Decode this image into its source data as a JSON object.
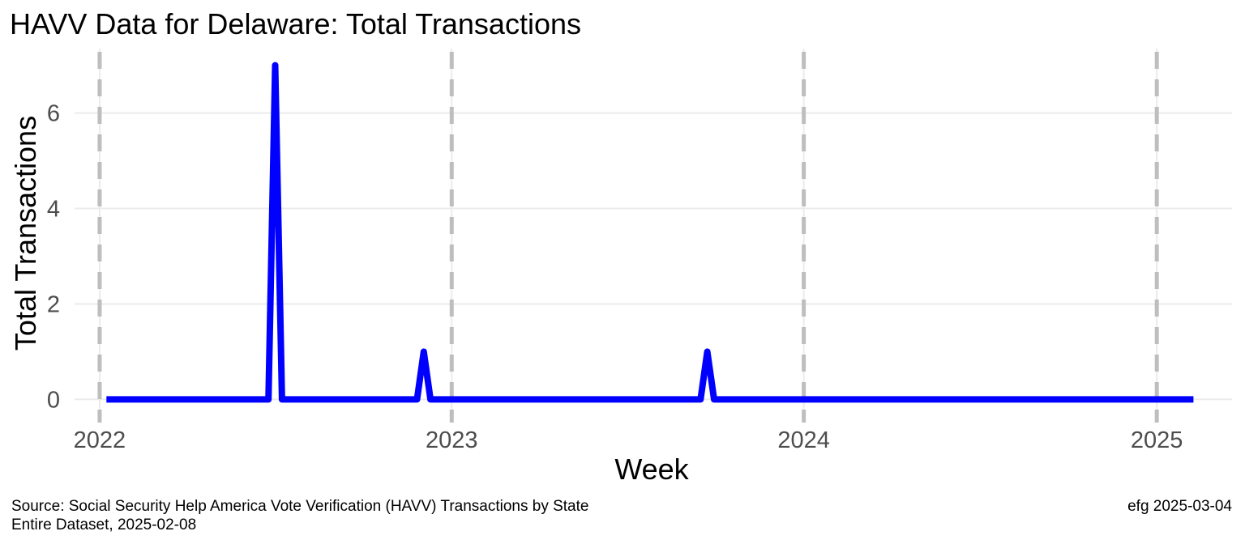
{
  "chart_data": {
    "type": "line",
    "title": "HAVV Data for Delaware:  Total Transactions",
    "xlabel": "Week",
    "ylabel": "Total Transactions",
    "x_axis_type": "date",
    "xlim": [
      "2021-12-06",
      "2025-03-20"
    ],
    "ylim": [
      -0.35,
      7.35
    ],
    "x_ticks": [
      "2022",
      "2023",
      "2024",
      "2025"
    ],
    "x_tick_dates": [
      "2022-01-01",
      "2023-01-01",
      "2024-01-01",
      "2025-01-01"
    ],
    "y_ticks": [
      0,
      2,
      4,
      6
    ],
    "grid": true,
    "vertical_reference_lines": "dashed gray at each year start",
    "legend": "none",
    "series": [
      {
        "color": "#0000ff",
        "points": [
          {
            "x": "2022-01-08",
            "y": 0
          },
          {
            "x": "2022-06-25",
            "y": 0
          },
          {
            "x": "2022-07-02",
            "y": 7
          },
          {
            "x": "2022-07-09",
            "y": 0
          },
          {
            "x": "2022-11-26",
            "y": 0
          },
          {
            "x": "2022-12-03",
            "y": 1
          },
          {
            "x": "2022-12-10",
            "y": 0
          },
          {
            "x": "2023-09-16",
            "y": 0
          },
          {
            "x": "2023-09-23",
            "y": 1
          },
          {
            "x": "2023-09-30",
            "y": 0
          },
          {
            "x": "2025-02-08",
            "y": 0
          }
        ]
      }
    ]
  },
  "caption": {
    "source_line1": "Source:  Social Security Help America Vote Verification (HAVV) Transactions by State",
    "source_line2": "Entire Dataset, 2025-02-08",
    "signature": "efg 2025-03-04"
  },
  "colors": {
    "line": "#0000ff",
    "gridline": "#ebebeb",
    "reference_line": "#bebebe",
    "tick_text": "#4d4d4d"
  }
}
